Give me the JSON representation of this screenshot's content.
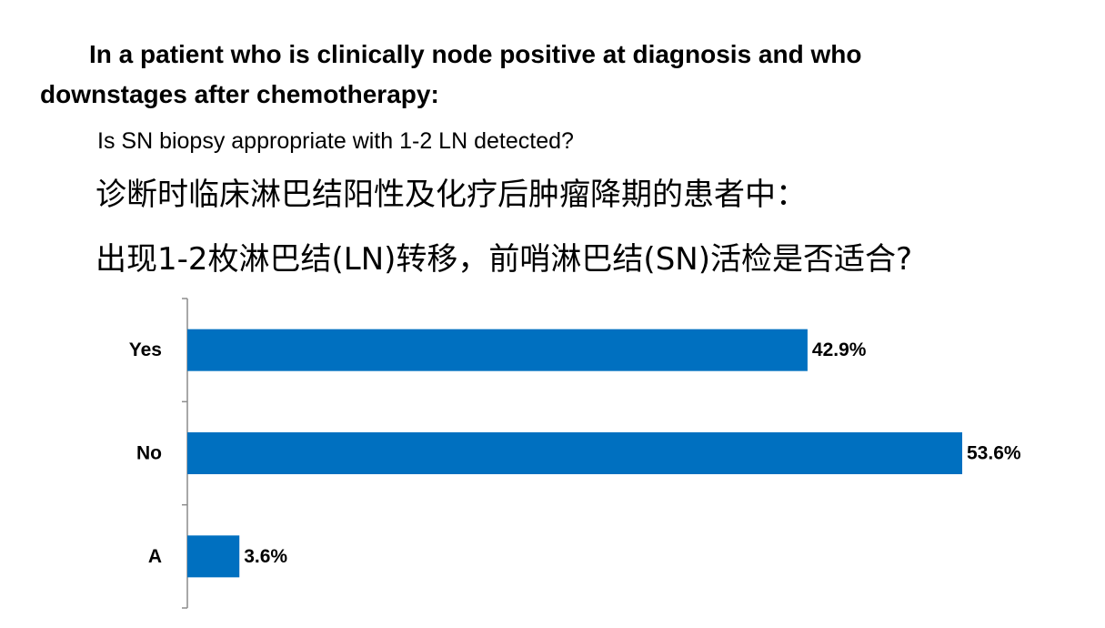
{
  "heading": {
    "line1": "In a patient who is clinically node positive at diagnosis and who",
    "line2": "downstages after chemotherapy:",
    "question_en": "Is SN biopsy appropriate with 1-2 LN detected?",
    "cn_line1": "诊断时临床淋巴结阳性及化疗后肿瘤降期的患者中：",
    "cn_line2": "出现1-2枚淋巴结(LN)转移，前哨淋巴结(SN)活检是否适合?"
  },
  "chart_data": {
    "type": "bar",
    "orientation": "horizontal",
    "categories": [
      "Yes",
      "No",
      "A"
    ],
    "values": [
      42.9,
      53.6,
      3.6
    ],
    "value_labels": [
      "42.9%",
      "53.6%",
      "3.6%"
    ],
    "unit": "%",
    "xlim": [
      0,
      53.6
    ],
    "bar_color": "#0070C0",
    "grid": false,
    "legend": "none"
  }
}
